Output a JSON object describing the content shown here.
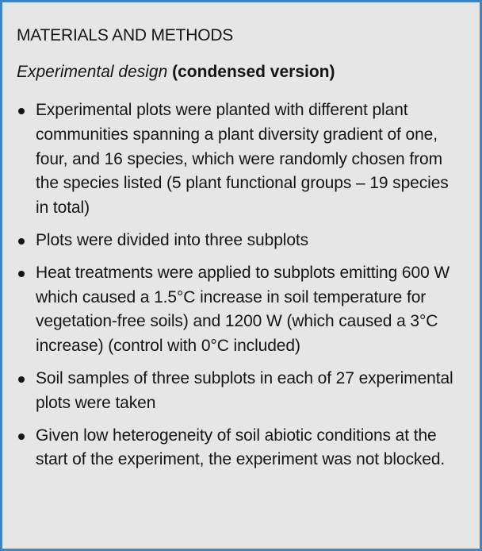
{
  "box": {
    "heading": "MATERIALS AND METHODS",
    "subheading_italic": "Experimental design",
    "subheading_bold": "(condensed version)",
    "bullets": [
      "Experimental plots were planted with different plant communities spanning a plant diversity gradient of one, four, and 16 species, which were randomly chosen from the species listed (5 plant functional groups – 19 species in total)",
      "Plots were divided into three subplots",
      "Heat treatments were applied to subplots emitting 600 W which caused a 1.5°C increase in soil temperature for vegetation-free soils) and 1200 W (which caused a 3°C increase) (control with 0°C included)",
      "Soil samples of three subplots in each of 27 experimental plots were taken",
      "Given low heterogeneity of soil abiotic conditions at the start of the experiment, the experiment was not blocked."
    ]
  },
  "colors": {
    "border": "#3f86c4",
    "background": "#e6e6e6",
    "text": "#151515"
  }
}
